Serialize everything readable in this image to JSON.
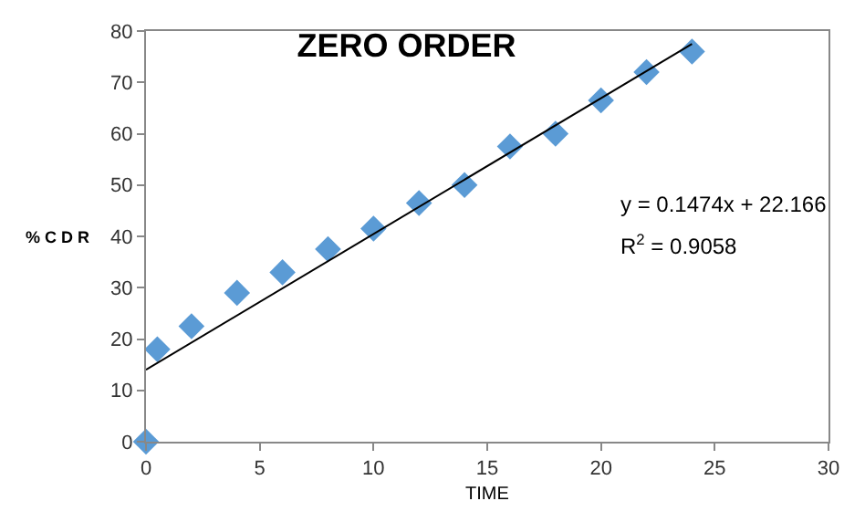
{
  "chart_data": {
    "type": "scatter",
    "title": "ZERO ORDER",
    "xlabel": "TIME",
    "ylabel": "% C D R",
    "marker": "diamond",
    "legend": false,
    "xlim": [
      0,
      30
    ],
    "xticks": [
      0,
      5,
      10,
      15,
      20,
      25,
      30
    ],
    "ylim": [
      0,
      80
    ],
    "yticks": [
      0,
      10,
      20,
      30,
      40,
      50,
      60,
      70,
      80
    ],
    "series": [
      {
        "color": "#5b9bd5",
        "x": [
          0,
          0.5,
          2,
          4,
          6,
          8,
          10,
          12,
          14,
          16,
          18,
          20,
          22,
          24
        ],
        "values": [
          0,
          18,
          22.5,
          29,
          33,
          37.5,
          41.5,
          46.5,
          50,
          57.5,
          60,
          66.5,
          72,
          76
        ]
      },
      {
        "type": "line",
        "marker": "none",
        "color": "#000000",
        "x": [
          0,
          24
        ],
        "values": [
          14,
          77.5
        ]
      }
    ],
    "annotations": [
      {
        "text": "y = 0.1474x + 22.166"
      },
      {
        "text": "R$^{2}$ = 0.9058"
      }
    ]
  }
}
